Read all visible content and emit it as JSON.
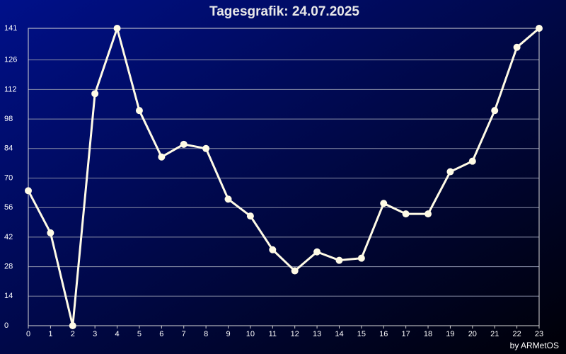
{
  "chart_data": {
    "type": "line",
    "title": "Tagesgrafik: 24.07.2025",
    "credit": "by ARMetOS",
    "x": [
      0,
      1,
      2,
      3,
      4,
      5,
      6,
      7,
      8,
      9,
      10,
      11,
      12,
      13,
      14,
      15,
      16,
      17,
      18,
      19,
      20,
      21,
      22,
      23
    ],
    "series": [
      {
        "color": "#fffbe6",
        "values": [
          64,
          44,
          0,
          110,
          141,
          102,
          80,
          86,
          84,
          60,
          52,
          36,
          26,
          35,
          31,
          32,
          58,
          53,
          53,
          73,
          78,
          102,
          132,
          141
        ]
      }
    ],
    "xlim": [
      0,
      23
    ],
    "xticks": [
      0,
      1,
      2,
      3,
      4,
      5,
      6,
      7,
      8,
      9,
      10,
      11,
      12,
      13,
      14,
      15,
      16,
      17,
      18,
      19,
      20,
      21,
      22,
      23
    ],
    "ylim": [
      0,
      141
    ],
    "yticks": [
      0,
      14,
      28,
      42,
      56,
      70,
      84,
      98,
      112,
      126,
      141
    ],
    "grid": true
  }
}
